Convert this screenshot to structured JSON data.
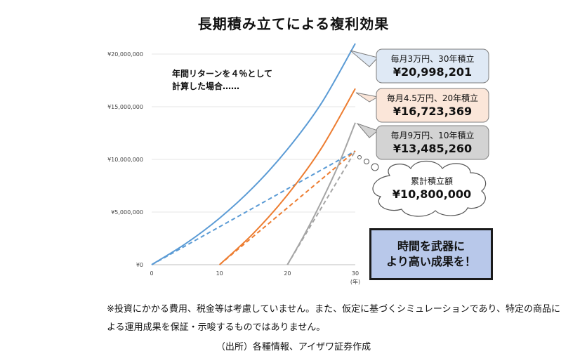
{
  "title": "長期積み立てによる複利効果",
  "note": [
    "年間リターンを４％として",
    "計算した場合……"
  ],
  "chart_data": {
    "type": "line",
    "title": "長期積み立てによる複利効果",
    "x_unit_label": "(年)",
    "xlim": [
      0,
      30
    ],
    "ylim": [
      0,
      21000000
    ],
    "x_ticks": [
      0,
      10,
      20,
      30
    ],
    "x_tick_labels": [
      "0",
      "10",
      "20",
      "30"
    ],
    "y_ticks": [
      0,
      5000000,
      10000000,
      15000000,
      20000000
    ],
    "y_tick_labels": [
      "¥0",
      "¥5,000,000",
      "¥10,000,000",
      "¥15,000,000",
      "¥20,000,000"
    ],
    "grid": "horizontal",
    "series": [
      {
        "color": "#5b9bd5",
        "style": "solid",
        "x": [
          0,
          5,
          10,
          15,
          20,
          25,
          30
        ],
        "y": [
          0,
          1994000,
          4418000,
          7368000,
          10956000,
          15321000,
          20998201
        ]
      },
      {
        "color": "#5b9bd5",
        "style": "dashed",
        "x": [
          0,
          30
        ],
        "y": [
          0,
          10800000
        ]
      },
      {
        "color": "#ed7d31",
        "style": "solid",
        "x": [
          10,
          15,
          20,
          25,
          30
        ],
        "y": [
          0,
          2990000,
          6628000,
          11055000,
          16723369
        ]
      },
      {
        "color": "#ed7d31",
        "style": "dashed",
        "x": [
          10,
          30
        ],
        "y": [
          0,
          10800000
        ]
      },
      {
        "color": "#a5a5a5",
        "style": "solid",
        "x": [
          20,
          22.5,
          25,
          27.5,
          30
        ],
        "y": [
          0,
          2845000,
          5981000,
          9450000,
          13485260
        ]
      },
      {
        "color": "#a5a5a5",
        "style": "dashed",
        "x": [
          20,
          30
        ],
        "y": [
          0,
          10800000
        ]
      }
    ]
  },
  "callouts": [
    {
      "line1": "毎月3万円、30年積立",
      "line2": "¥20,998,201",
      "fill": "#dfe9f5"
    },
    {
      "line1": "毎月4.5万円、20年積立",
      "line2": "¥16,723,369",
      "fill": "#fbe6d9"
    },
    {
      "line1": "毎月9万円、10年積立",
      "line2": "¥13,485,260",
      "fill": "#d3d3d3"
    }
  ],
  "cumulative": {
    "line1": "累計積立額",
    "line2": "¥10,800,000"
  },
  "message": [
    "時間を武器に",
    "より高い成果を！"
  ],
  "disclaimer": "※投資にかかる費用、税金等は考慮していません。また、仮定に基づくシミュレーションであり、特定の商品による運用成果を保証・示唆するものではありません。",
  "source": "（出所）各種情報、アイザワ証券作成"
}
